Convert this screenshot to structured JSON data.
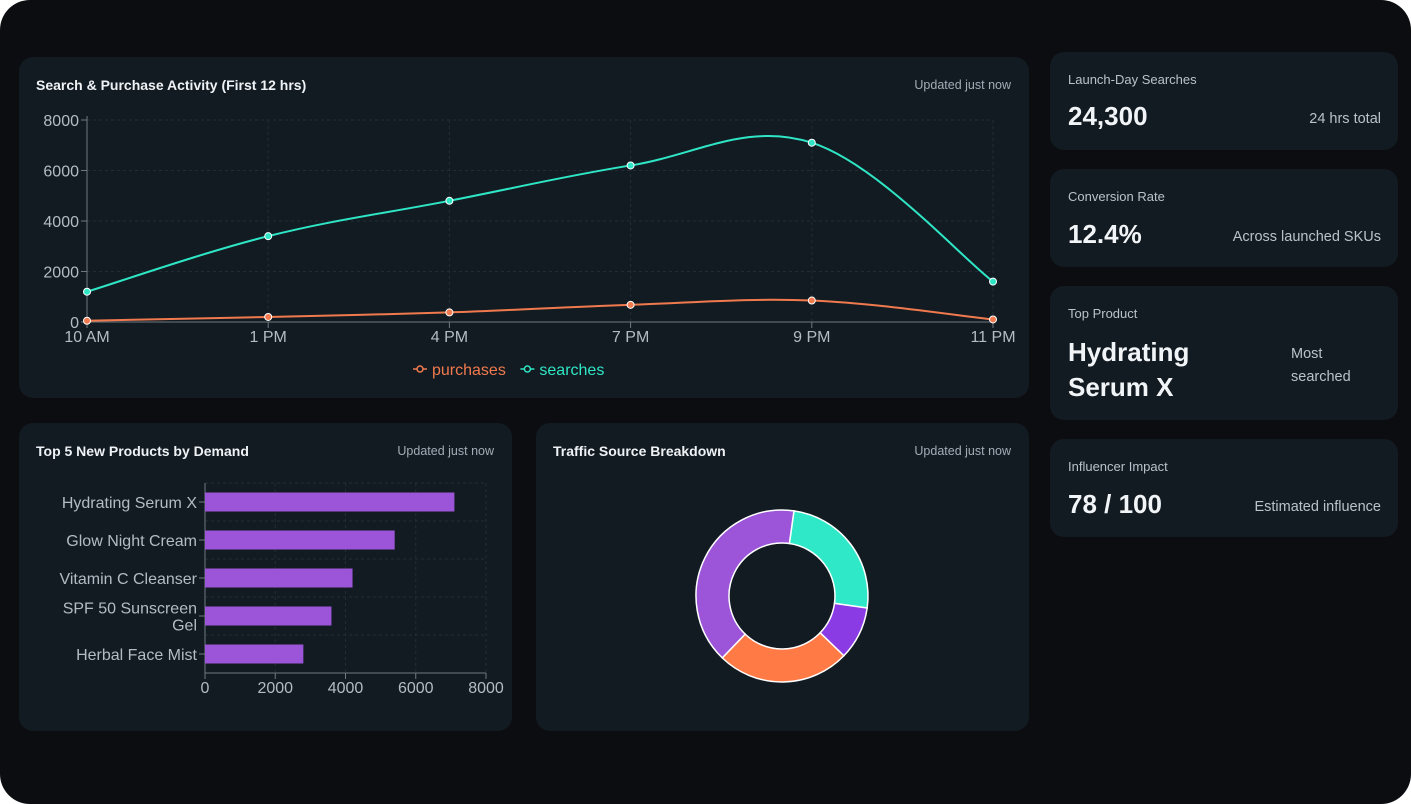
{
  "line_panel": {
    "title": "Search & Purchase Activity (First 12 hrs)",
    "updated": "Updated just now"
  },
  "bar_panel": {
    "title": "Top 5 New Products by Demand",
    "updated": "Updated just now"
  },
  "donut_panel": {
    "title": "Traffic Source Breakdown",
    "updated": "Updated just now"
  },
  "kpis": {
    "searches": {
      "label": "Launch-Day Searches",
      "value": "24,300",
      "note": "24 hrs total"
    },
    "conversion": {
      "label": "Conversion Rate",
      "value": "12.4%",
      "note": "Across launched SKUs"
    },
    "top_product": {
      "label": "Top Product",
      "value_line1": "Hydrating",
      "value_line2": "Serum X",
      "note_line1": "Most",
      "note_line2": "searched"
    },
    "influencer": {
      "label": "Influencer Impact",
      "value": "78 / 100",
      "note": "Estimated influence"
    }
  },
  "colors": {
    "searches": "#2ee6c5",
    "purchases": "#f07a4e",
    "bars": "#9c55d8",
    "donut": [
      "#2ee8c8",
      "#8a3be4",
      "#ff7a45",
      "#9c55d8"
    ]
  },
  "chart_data": [
    {
      "type": "line",
      "title": "Search & Purchase Activity (First 12 hrs)",
      "x": [
        "10 AM",
        "1 PM",
        "4 PM",
        "7 PM",
        "9 PM",
        "11 PM"
      ],
      "ylim": [
        0,
        8000
      ],
      "yticks": [
        0,
        2000,
        4000,
        6000,
        8000
      ],
      "grid": true,
      "legend": "bottom-center",
      "series": [
        {
          "name": "purchases",
          "values": [
            50,
            200,
            380,
            680,
            850,
            100
          ]
        },
        {
          "name": "searches",
          "values": [
            1200,
            3400,
            4800,
            6200,
            7100,
            1600
          ]
        }
      ]
    },
    {
      "type": "bar",
      "orientation": "horizontal",
      "title": "Top 5 New Products by Demand",
      "categories": [
        "Hydrating Serum X",
        "Glow Night Cream",
        "Vitamin C Cleanser",
        "SPF 50 Sunscreen Gel",
        "Herbal Face Mist"
      ],
      "category_lines": [
        [
          "Hydrating Serum X"
        ],
        [
          "Glow Night Cream"
        ],
        [
          "Vitamin C Cleanser"
        ],
        [
          "SPF 50 Sunscreen",
          "Gel"
        ],
        [
          "Herbal Face Mist"
        ]
      ],
      "values": [
        7100,
        5400,
        4200,
        3600,
        2800
      ],
      "xlim": [
        0,
        8000
      ],
      "xticks": [
        0,
        2000,
        4000,
        6000,
        8000
      ],
      "grid": true
    },
    {
      "type": "pie",
      "style": "donut",
      "title": "Traffic Source Breakdown",
      "values": [
        25,
        10,
        25,
        40
      ]
    }
  ]
}
